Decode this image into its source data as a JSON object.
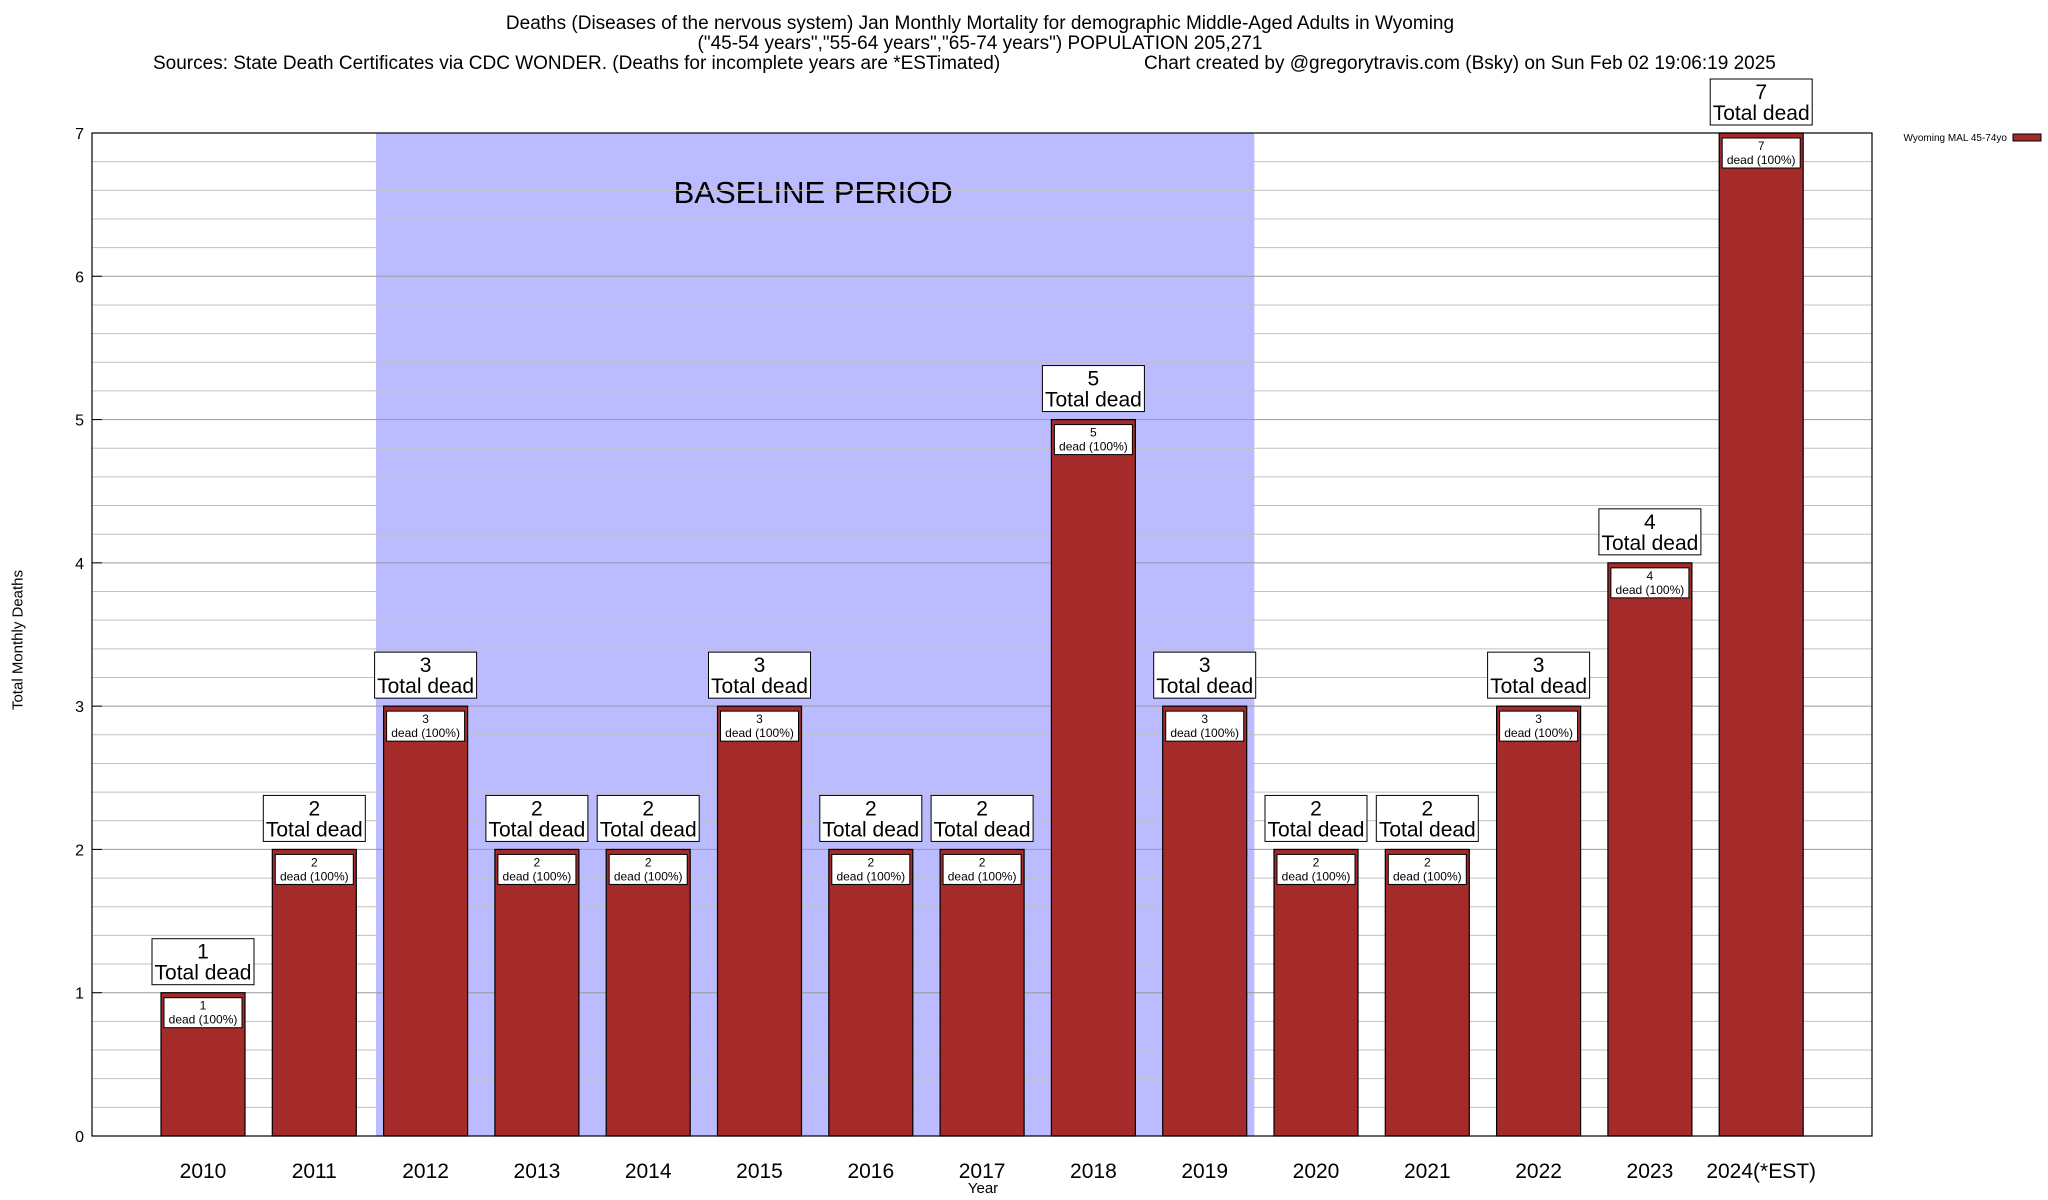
{
  "chart_data": {
    "type": "bar",
    "title": "Deaths (Diseases of the nervous system) Jan Monthly Mortality for demographic Middle-Aged Adults in Wyoming",
    "subtitle": "(\"45-54 years\",\"55-64 years\",\"65-74 years\") POPULATION 205,271",
    "source": "Sources: State Death Certificates via CDC WONDER. (Deaths for incomplete years are *ESTimated)",
    "credit": "Chart created by @gregorytravis.com (Bsky) on Sun Feb 02 19:06:19 2025",
    "xlabel": "Year",
    "ylabel": "Total Monthly Deaths",
    "ylim": [
      0,
      7
    ],
    "yticks": [
      0,
      1,
      2,
      3,
      4,
      5,
      6,
      7
    ],
    "categories": [
      "2010",
      "2011",
      "2012",
      "2013",
      "2014",
      "2015",
      "2016",
      "2017",
      "2018",
      "2019",
      "2020",
      "2021",
      "2022",
      "2023",
      "2024(*EST)"
    ],
    "series": [
      {
        "name": "Wyoming MAL 45-74yo",
        "color": "#a52a2a",
        "values": [
          1,
          2,
          3,
          2,
          2,
          3,
          2,
          2,
          5,
          3,
          2,
          2,
          3,
          4,
          7
        ]
      }
    ],
    "total_label": "Total dead",
    "inner_label": "dead (100%)",
    "baseline": {
      "label": "BASELINE PERIOD",
      "from": "2012",
      "to": "2019",
      "color": "#bbbbff"
    },
    "legend_position": "top-right",
    "grid": true
  }
}
